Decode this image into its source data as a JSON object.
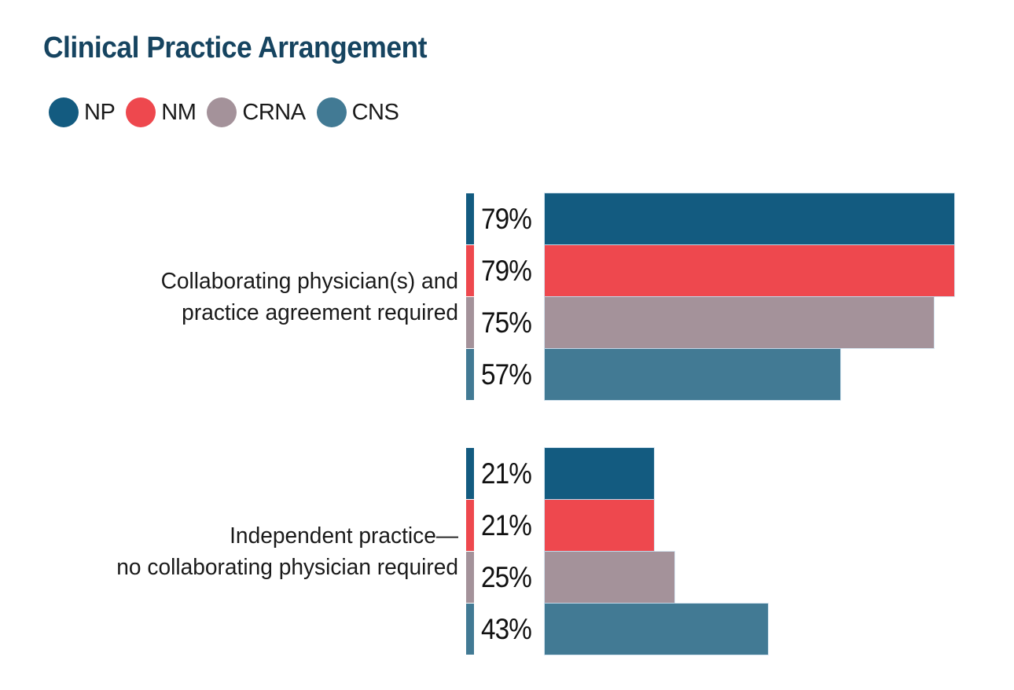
{
  "title": "Clinical Practice Arrangement",
  "title_color": "#164460",
  "text_color": "#1A1A1A",
  "legend": {
    "items": [
      {
        "label": "NP",
        "color": "#135B80"
      },
      {
        "label": "NM",
        "color": "#EE484E"
      },
      {
        "label": "CRNA",
        "color": "#A4929A"
      },
      {
        "label": "CNS",
        "color": "#427A94"
      }
    ]
  },
  "chart_data": {
    "type": "bar",
    "orientation": "horizontal",
    "title": "Clinical Practice Arrangement",
    "value_unit": "percent",
    "xlim": [
      0,
      100
    ],
    "grid": false,
    "legend_position": "top-left",
    "categories": [
      "Collaborating physician(s) and practice agreement required",
      "Independent practice—no collaborating physician required"
    ],
    "series": [
      {
        "name": "NP",
        "color": "#135B80",
        "values": [
          79,
          21
        ]
      },
      {
        "name": "NM",
        "color": "#EE484E",
        "values": [
          79,
          21
        ]
      },
      {
        "name": "CRNA",
        "color": "#A4929A",
        "values": [
          75,
          25
        ]
      },
      {
        "name": "CNS",
        "color": "#427A94",
        "values": [
          57,
          43
        ]
      }
    ]
  },
  "groups": [
    {
      "label_lines": [
        "Collaborating physician(s) and",
        "practice agreement required"
      ],
      "bars": [
        {
          "series": "NP",
          "value": 79,
          "display": "79%",
          "color": "#135B80"
        },
        {
          "series": "NM",
          "value": 79,
          "display": "79%",
          "color": "#EE484E"
        },
        {
          "series": "CRNA",
          "value": 75,
          "display": "75%",
          "color": "#A4929A"
        },
        {
          "series": "CNS",
          "value": 57,
          "display": "57%",
          "color": "#427A94"
        }
      ]
    },
    {
      "label_lines": [
        "Independent practice—",
        "no collaborating physician required"
      ],
      "bars": [
        {
          "series": "NP",
          "value": 21,
          "display": "21%",
          "color": "#135B80"
        },
        {
          "series": "NM",
          "value": 21,
          "display": "21%",
          "color": "#EE484E"
        },
        {
          "series": "CRNA",
          "value": 25,
          "display": "25%",
          "color": "#A4929A"
        },
        {
          "series": "CNS",
          "value": 43,
          "display": "43%",
          "color": "#427A94"
        }
      ]
    }
  ]
}
